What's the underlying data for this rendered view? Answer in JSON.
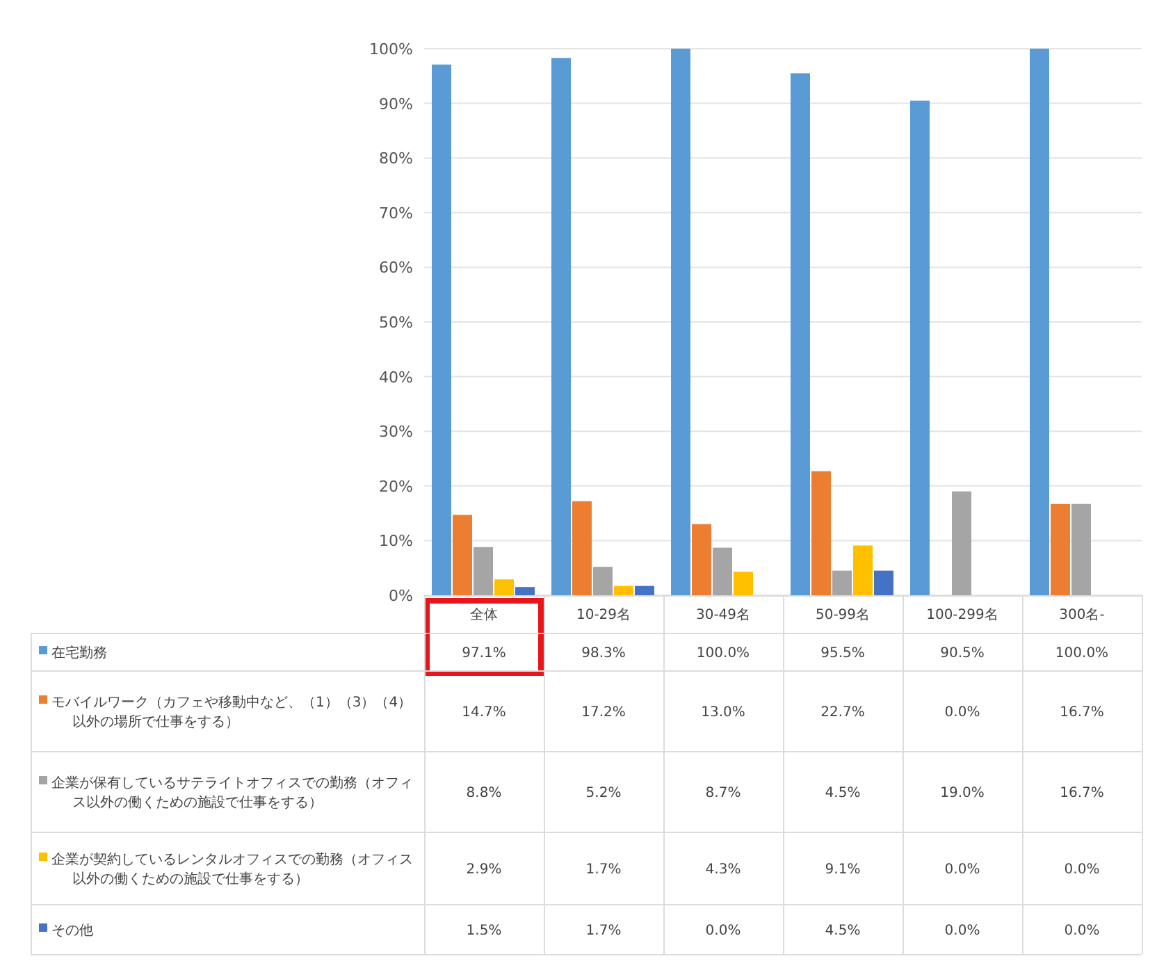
{
  "chart_data": {
    "type": "bar",
    "categories": [
      "全体",
      "10-29名",
      "30-49名",
      "50-99名",
      "100-299名",
      "300名-"
    ],
    "series": [
      {
        "name": "在宅勤務",
        "color": "#5b9bd5",
        "values": [
          97.1,
          98.3,
          100.0,
          95.5,
          90.5,
          100.0
        ],
        "value_labels": [
          "97.1%",
          "98.3%",
          "100.0%",
          "95.5%",
          "90.5%",
          "100.0%"
        ]
      },
      {
        "name": "モバイルワーク（カフェや移動中など、（1）（3）（4）以外の場所で仕事をする）",
        "color": "#ed7d31",
        "values": [
          14.7,
          17.2,
          13.0,
          22.7,
          0.0,
          16.7
        ],
        "value_labels": [
          "14.7%",
          "17.2%",
          "13.0%",
          "22.7%",
          "0.0%",
          "16.7%"
        ]
      },
      {
        "name": "企業が保有しているサテライトオフィスでの勤務（オフィス以外の働くための施設で仕事をする）",
        "color": "#a5a5a5",
        "values": [
          8.8,
          5.2,
          8.7,
          4.5,
          19.0,
          16.7
        ],
        "value_labels": [
          "8.8%",
          "5.2%",
          "8.7%",
          "4.5%",
          "19.0%",
          "16.7%"
        ]
      },
      {
        "name": "企業が契約しているレンタルオフィスでの勤務（オフィス以外の働くための施設で仕事をする）",
        "color": "#ffc000",
        "values": [
          2.9,
          1.7,
          4.3,
          9.1,
          0.0,
          0.0
        ],
        "value_labels": [
          "2.9%",
          "1.7%",
          "4.3%",
          "9.1%",
          "0.0%",
          "0.0%"
        ]
      },
      {
        "name": "その他",
        "color": "#4472c4",
        "values": [
          1.5,
          1.7,
          0.0,
          4.5,
          0.0,
          0.0
        ],
        "value_labels": [
          "1.5%",
          "1.7%",
          "0.0%",
          "4.5%",
          "0.0%",
          "0.0%"
        ]
      }
    ],
    "ylim": [
      0,
      100
    ],
    "yticks": [
      {
        "value": 0,
        "label": "0%"
      },
      {
        "value": 10,
        "label": "10%"
      },
      {
        "value": 20,
        "label": "20%"
      },
      {
        "value": 30,
        "label": "30%"
      },
      {
        "value": 40,
        "label": "40%"
      },
      {
        "value": 50,
        "label": "50%"
      },
      {
        "value": 60,
        "label": "60%"
      },
      {
        "value": 70,
        "label": "70%"
      },
      {
        "value": 80,
        "label": "80%"
      },
      {
        "value": 90,
        "label": "90%"
      },
      {
        "value": 100,
        "label": "100%"
      }
    ],
    "grid": "y",
    "legend": "bottom"
  }
}
